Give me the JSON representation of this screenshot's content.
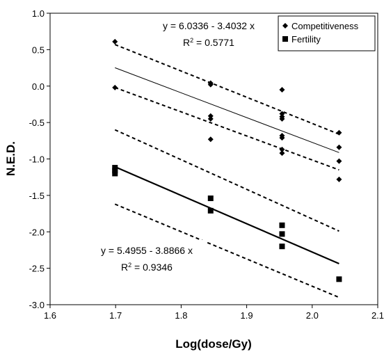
{
  "chart_data": {
    "type": "scatter",
    "xlabel": "Log(dose/Gy)",
    "ylabel": "N.E.D.",
    "xlim": [
      1.6,
      2.1
    ],
    "ylim": [
      -3.0,
      1.0
    ],
    "x_ticks": [
      "1.6",
      "1.7",
      "1.8",
      "1.9",
      "2.0",
      "2.1"
    ],
    "y_ticks": [
      "1.0",
      "0.5",
      "0.0",
      "-0.5",
      "-1.0",
      "-1.5",
      "-2.0",
      "-2.5",
      "-3.0"
    ],
    "legend_position": "top-right",
    "series": [
      {
        "name": "Competitiveness",
        "marker": "diamond",
        "color": "#000000",
        "points": [
          [
            1.699,
            0.61
          ],
          [
            1.699,
            -0.02
          ],
          [
            1.845,
            0.04
          ],
          [
            1.845,
            0.02
          ],
          [
            1.845,
            -0.41
          ],
          [
            1.845,
            -0.45
          ],
          [
            1.845,
            -0.73
          ],
          [
            1.954,
            -0.05
          ],
          [
            1.954,
            -0.38
          ],
          [
            1.954,
            -0.42
          ],
          [
            1.954,
            -0.45
          ],
          [
            1.954,
            -0.68
          ],
          [
            1.954,
            -0.71
          ],
          [
            1.954,
            -0.87
          ],
          [
            1.954,
            -0.92
          ],
          [
            2.041,
            -0.64
          ],
          [
            2.041,
            -0.84
          ],
          [
            2.041,
            -1.03
          ],
          [
            2.041,
            -1.28
          ]
        ],
        "fit": {
          "equation": "y = 6.0336 - 3.4032 x",
          "r2_label": "R",
          "r2_exp": "2",
          "r2_value": " = 0.5771",
          "intercept": 6.0336,
          "slope": -3.4032,
          "x_range": [
            1.699,
            2.041
          ],
          "upper_band": [
            [
              1.699,
              0.57
            ],
            [
              2.041,
              -0.66
            ]
          ],
          "lower_band": [
            [
              1.699,
              -0.02
            ],
            [
              2.041,
              -1.15
            ]
          ]
        }
      },
      {
        "name": "Fertility",
        "marker": "square",
        "color": "#000000",
        "points": [
          [
            1.699,
            -1.12
          ],
          [
            1.699,
            -1.16
          ],
          [
            1.699,
            -1.2
          ],
          [
            1.845,
            -1.54
          ],
          [
            1.845,
            -1.71
          ],
          [
            1.954,
            -1.91
          ],
          [
            1.954,
            -2.03
          ],
          [
            1.954,
            -2.2
          ],
          [
            2.041,
            -2.65
          ]
        ],
        "fit": {
          "equation": "y = 5.4955 - 3.8866 x",
          "r2_label": "R",
          "r2_exp": "2",
          "r2_value": " = 0.9346",
          "intercept": 5.4955,
          "slope": -3.8866,
          "x_range": [
            1.699,
            2.041
          ],
          "upper_band": [
            [
              1.699,
              -0.6
            ],
            [
              2.041,
              -1.99
            ]
          ],
          "lower_band": [
            [
              1.699,
              -1.62
            ],
            [
              2.041,
              -2.9
            ]
          ]
        }
      }
    ]
  }
}
